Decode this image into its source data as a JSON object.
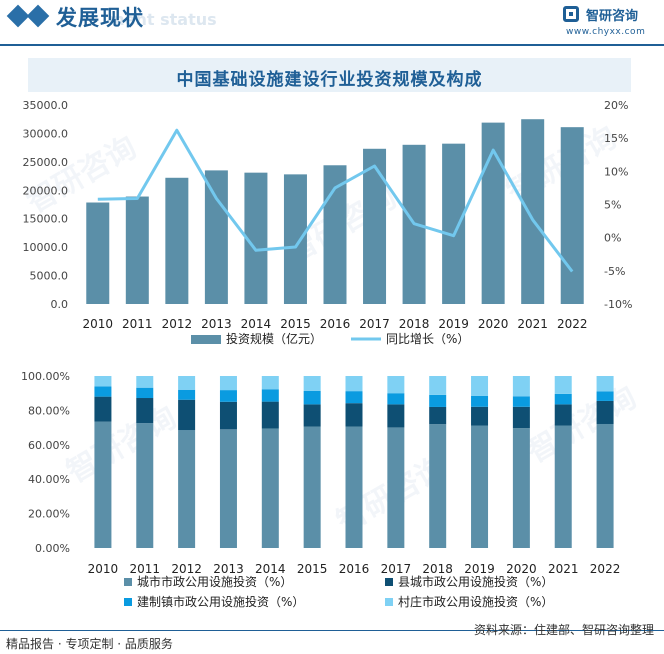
{
  "header": {
    "title": "发展现状",
    "title_en": "ment status",
    "brand_name": "智研咨询",
    "brand_url": "www.chyxx.com"
  },
  "chart_title": "中国基础设施建设行业投资规模及构成",
  "watermark": "智研咨询",
  "footer": {
    "left": "精品报告 · 专项定制 · 品质服务",
    "source": "资料来源：住建部、智研咨询整理"
  },
  "colors": {
    "bar": "#5b8fa8",
    "line": "#72c8ee",
    "city": "#5b8fa8",
    "county": "#0e4f73",
    "town": "#0a9be0",
    "village": "#7fd1f4",
    "accent": "#1f5f96"
  },
  "chart_data": [
    {
      "type": "bar",
      "categories": [
        "2010",
        "2011",
        "2012",
        "2013",
        "2014",
        "2015",
        "2016",
        "2017",
        "2018",
        "2019",
        "2020",
        "2021",
        "2022"
      ],
      "series": [
        {
          "name": "投资规模（亿元）",
          "axis": "left",
          "type": "bar",
          "values": [
            17850,
            18900,
            22200,
            23500,
            23100,
            22800,
            24400,
            27300,
            28000,
            28200,
            31900,
            32500,
            31100
          ]
        },
        {
          "name": "同比增长（%）",
          "axis": "right",
          "type": "line",
          "values": [
            5.8,
            5.9,
            16.2,
            5.9,
            -1.9,
            -1.4,
            7.5,
            10.8,
            2.1,
            0.3,
            13.2,
            2.7,
            -5.1
          ]
        }
      ],
      "left_ticks": [
        "0.0",
        "5000.0",
        "10000.0",
        "15000.0",
        "20000.0",
        "25000.0",
        "30000.0",
        "35000.0"
      ],
      "right_ticks": [
        "-10%",
        "-5%",
        "0%",
        "5%",
        "10%",
        "15%",
        "20%"
      ],
      "ylim": [
        0,
        35000
      ],
      "ylim_right": [
        -10,
        20
      ],
      "legend_position": "bottom"
    },
    {
      "type": "bar",
      "stacked": true,
      "categories": [
        "2010",
        "2011",
        "2012",
        "2013",
        "2014",
        "2015",
        "2016",
        "2017",
        "2018",
        "2019",
        "2020",
        "2021",
        "2022"
      ],
      "series": [
        {
          "name": "城市市政公用设施投资（%）",
          "key": "city",
          "values": [
            73.5,
            72.6,
            68.6,
            69.0,
            69.5,
            70.6,
            70.6,
            70.1,
            72.0,
            71.2,
            69.7,
            71.2,
            72.1
          ]
        },
        {
          "name": "县城市政公用设施投资（%）",
          "key": "county",
          "values": [
            14.5,
            14.6,
            17.6,
            16.0,
            15.6,
            12.9,
            13.6,
            13.4,
            10.0,
            10.9,
            12.4,
            12.3,
            13.4
          ]
        },
        {
          "name": "建制镇市政公用设施投资（%）",
          "key": "town",
          "values": [
            6.0,
            6.0,
            5.8,
            6.8,
            7.2,
            7.8,
            7.0,
            6.5,
            7.0,
            6.4,
            6.1,
            6.1,
            5.6
          ]
        },
        {
          "name": "村庄市政公用设施投资（%）",
          "key": "village",
          "values": [
            6.0,
            6.8,
            8.0,
            8.2,
            7.7,
            8.7,
            8.8,
            10.0,
            11.0,
            11.5,
            11.8,
            10.4,
            8.9
          ]
        }
      ],
      "y_ticks": [
        "0.00%",
        "20.00%",
        "40.00%",
        "60.00%",
        "80.00%",
        "100.00%"
      ],
      "ylim": [
        0,
        100
      ],
      "legend_position": "bottom"
    }
  ]
}
